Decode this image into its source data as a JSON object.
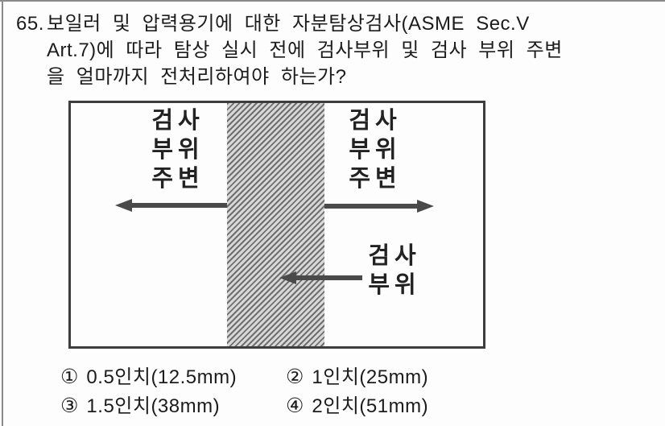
{
  "question": {
    "number": "65.",
    "lines": [
      "보일러 및 압력용기에 대한 자분탐상검사(ASME Sec.V",
      "Art.7)에 따라 탐상 실시 전에 검사부위 및 검사 부위 주변",
      "을 얼마까지 전처리하여야 하는가?"
    ]
  },
  "diagram": {
    "surround_label_lines": [
      "검사",
      "부위",
      "주변"
    ],
    "inspect_label_lines": [
      "검사",
      "부위"
    ]
  },
  "options": [
    {
      "num": "①",
      "text": "0.5인치(12.5mm)"
    },
    {
      "num": "②",
      "text": "1인치(25mm)"
    },
    {
      "num": "③",
      "text": "1.5인치(38mm)"
    },
    {
      "num": "④",
      "text": "2인치(51mm)"
    }
  ],
  "colors": {
    "page_background": "#fdfdfd",
    "text": "#1c1c1c",
    "diagram_border": "#3d3d3d",
    "arrow": "#4a4a4a",
    "hatch_dark": "#6f6f6f",
    "hatch_light": "#d8d8d8",
    "page_rule": "#8a8a8a"
  }
}
